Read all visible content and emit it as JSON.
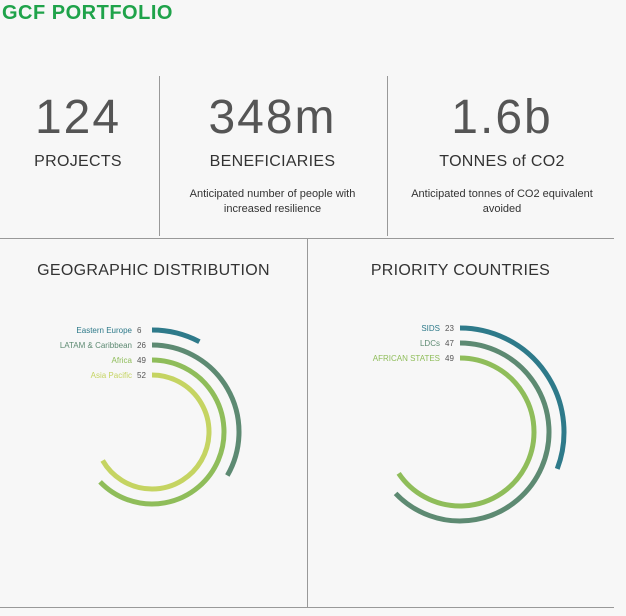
{
  "header": {
    "title": "GCF PORTFOLIO"
  },
  "stats": [
    {
      "value": "124",
      "label": "PROJECTS",
      "description": ""
    },
    {
      "value": "348m",
      "label": "BENEFICIARIES",
      "description": "Anticipated number of people with increased resilience"
    },
    {
      "value": "1.6b",
      "label": "TONNES of CO2",
      "description": "Anticipated tonnes of CO2 equivalent avoided"
    }
  ],
  "chart_data": [
    {
      "type": "radial-bar",
      "title": "GEOGRAPHIC DISTRIBUTION",
      "max": 52,
      "series": [
        {
          "name": "Eastern Europe",
          "value": 6,
          "color": "#2e7a8a"
        },
        {
          "name": "LATAM & Caribbean",
          "value": 26,
          "color": "#5d8a72"
        },
        {
          "name": "Africa",
          "value": 49,
          "color": "#8fbd5a"
        },
        {
          "name": "Asia Pacific",
          "value": 52,
          "color": "#c5d462"
        }
      ]
    },
    {
      "type": "radial-bar",
      "title": "PRIORITY COUNTRIES",
      "max": 49,
      "series": [
        {
          "name": "SIDS",
          "value": 23,
          "color": "#2e7a8a"
        },
        {
          "name": "LDCs",
          "value": 47,
          "color": "#5d8a72"
        },
        {
          "name": "AFRICAN STATES",
          "value": 49,
          "color": "#8fbd5a"
        }
      ]
    }
  ]
}
